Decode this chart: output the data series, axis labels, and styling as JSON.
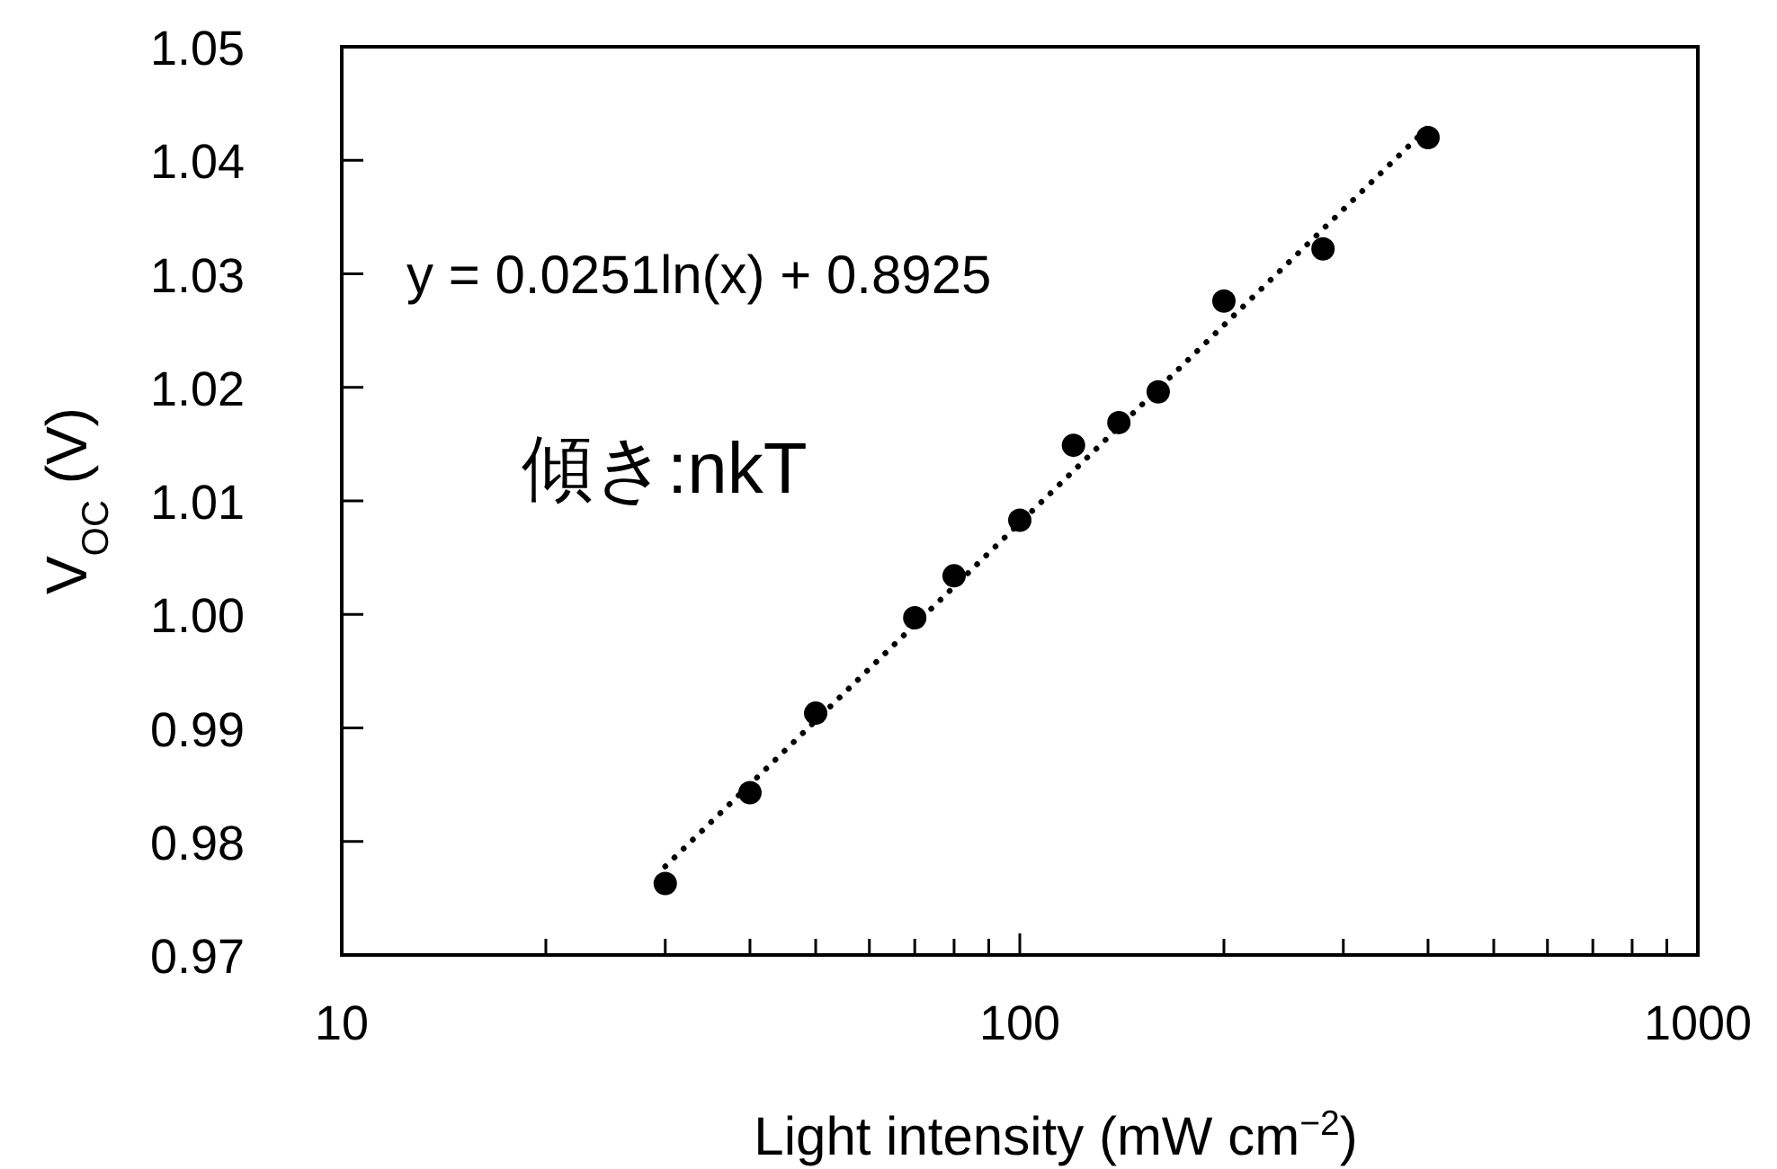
{
  "chart_data": {
    "type": "scatter",
    "xlabel": "Light intensity (mW cm$^{−2}$)",
    "ylabel": "V$_{OC}$ (V)",
    "log": "x",
    "xlim": [
      10,
      1000
    ],
    "xticks": [
      10,
      {
        "value": 20,
        "label": null
      },
      {
        "value": 30,
        "label": null
      },
      {
        "value": 40,
        "label": null
      },
      {
        "value": 50,
        "label": null
      },
      {
        "value": 60,
        "label": null
      },
      {
        "value": 70,
        "label": null
      },
      {
        "value": 80,
        "label": null
      },
      {
        "value": 90,
        "label": null
      },
      100,
      {
        "value": 200,
        "label": null
      },
      {
        "value": 300,
        "label": null
      },
      {
        "value": 400,
        "label": null
      },
      {
        "value": 500,
        "label": null
      },
      {
        "value": 600,
        "label": null
      },
      {
        "value": 700,
        "label": null
      },
      {
        "value": 800,
        "label": null
      },
      {
        "value": 900,
        "label": null
      },
      1000
    ],
    "ylim": [
      0.97,
      1.05
    ],
    "yticks": [
      0.97,
      0.98,
      0.99,
      {
        "value": 1.0,
        "label": "1.00"
      },
      1.01,
      1.02,
      1.03,
      1.04,
      1.05
    ],
    "grid": false,
    "series": [
      {
        "color": "#000000",
        "marker": "circle",
        "x": [
          30,
          40,
          50,
          70,
          80,
          100,
          120,
          140,
          160,
          200,
          280,
          400
        ],
        "values": [
          0.9763,
          0.9843,
          0.9913,
          0.9997,
          1.0034,
          1.0083,
          1.0149,
          1.0169,
          1.0196,
          1.0276,
          1.0322,
          1.042
        ]
      },
      {
        "type": "line",
        "color": "#000000",
        "line_style": "dotted",
        "x": [
          30,
          400
        ],
        "values": [
          0.9778,
          1.0429
        ]
      }
    ],
    "annotations": [
      "y = 0.0251ln(x) + 0.8925",
      "傾き:nkT"
    ]
  }
}
